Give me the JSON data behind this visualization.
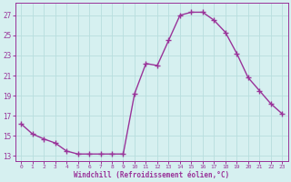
{
  "x": [
    0,
    1,
    2,
    3,
    4,
    5,
    6,
    7,
    8,
    9,
    10,
    11,
    12,
    13,
    14,
    15,
    16,
    17,
    18,
    19,
    20,
    21,
    22,
    23
  ],
  "y": [
    16.2,
    15.2,
    14.7,
    14.3,
    13.5,
    13.2,
    13.2,
    13.2,
    13.2,
    13.2,
    19.2,
    22.2,
    22.0,
    24.5,
    27.0,
    27.3,
    27.3,
    26.5,
    25.3,
    23.2,
    20.8,
    19.5,
    18.2,
    17.2
  ],
  "line_color": "#993399",
  "marker": "+",
  "marker_size": 4,
  "marker_linewidth": 1.0,
  "bg_color": "#d6f0f0",
  "grid_color": "#b8dede",
  "xlabel": "Windchill (Refroidissement éolien,°C)",
  "xlabel_color": "#993399",
  "ylabel_ticks": [
    13,
    15,
    17,
    19,
    21,
    23,
    25,
    27
  ],
  "xtick_labels": [
    "0",
    "1",
    "2",
    "3",
    "4",
    "5",
    "6",
    "7",
    "8",
    "9",
    "10",
    "11",
    "12",
    "13",
    "14",
    "15",
    "16",
    "17",
    "18",
    "19",
    "20",
    "21",
    "22",
    "23"
  ],
  "ylim": [
    12.5,
    28.2
  ],
  "xlim": [
    -0.5,
    23.5
  ],
  "tick_color": "#993399",
  "spine_color": "#993399",
  "line_width": 1.0
}
